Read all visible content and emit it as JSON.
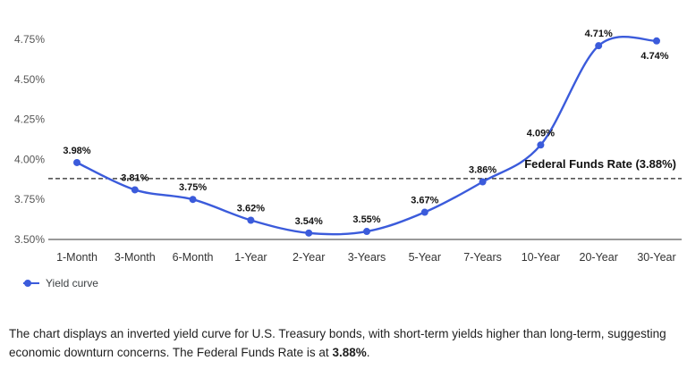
{
  "chart_data": {
    "type": "line",
    "title": "",
    "categories": [
      "1-Month",
      "3-Month",
      "6-Month",
      "1-Year",
      "2-Year",
      "3-Years",
      "5-Year",
      "7-Years",
      "10-Year",
      "20-Year",
      "30-Year"
    ],
    "values": [
      3.98,
      3.81,
      3.75,
      3.62,
      3.54,
      3.55,
      3.67,
      3.86,
      4.09,
      4.71,
      4.74
    ],
    "labels": [
      "3.98%",
      "3.81%",
      "3.75%",
      "3.62%",
      "3.54%",
      "3.55%",
      "3.67%",
      "3.86%",
      "4.09%",
      "4.71%",
      "4.74%"
    ],
    "xlabel": "",
    "ylabel": "",
    "ylim": [
      3.5,
      4.75
    ],
    "yticks": [
      3.5,
      3.75,
      4.0,
      4.25,
      4.5,
      4.75
    ],
    "ytick_labels": [
      "3.50%",
      "3.75%",
      "4.00%",
      "4.25%",
      "4.50%",
      "4.75%"
    ],
    "grid": false,
    "line_color": "#3b5bdb",
    "reference_line": {
      "value": 3.88,
      "label": "Federal Funds Rate (3.88%)"
    },
    "legend": {
      "position": "bottom",
      "entries": [
        {
          "label": "Yield curve",
          "color": "#3b5bdb"
        }
      ]
    }
  },
  "caption": {
    "text_before_bold": "The chart displays an inverted yield curve for U.S. Treasury bonds, with short-term yields higher than long-term, suggesting economic downturn concerns. The Federal Funds Rate is at ",
    "bold_text": "3.88%",
    "text_after_bold": "."
  }
}
